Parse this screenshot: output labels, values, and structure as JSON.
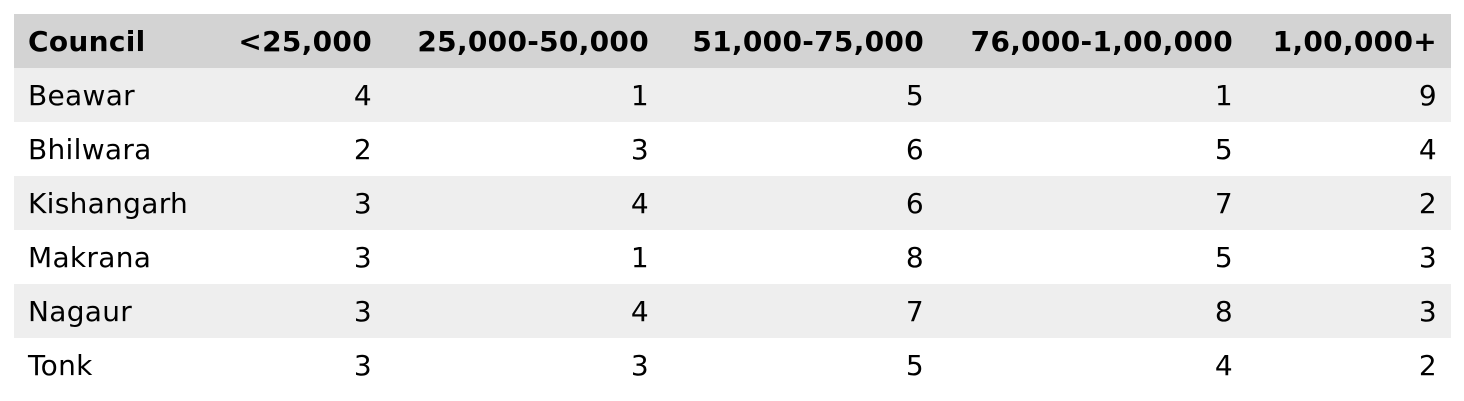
{
  "chart_data": {
    "type": "table",
    "columns": [
      "Council",
      "<25,000",
      "25,000-50,000",
      "51,000-75,000",
      "76,000-1,00,000",
      "1,00,000+"
    ],
    "rows": [
      [
        "Beawar",
        4,
        1,
        5,
        1,
        9
      ],
      [
        "Bhilwara",
        2,
        3,
        6,
        5,
        4
      ],
      [
        "Kishangarh",
        3,
        4,
        6,
        7,
        2
      ],
      [
        "Makrana",
        3,
        1,
        8,
        5,
        3
      ],
      [
        "Nagaur",
        3,
        4,
        7,
        8,
        3
      ],
      [
        "Tonk",
        3,
        3,
        5,
        4,
        2
      ]
    ]
  },
  "colors": {
    "header_bg": "#d3d3d3",
    "row_alt_bg": "#eeeeee",
    "row_bg": "#ffffff"
  }
}
